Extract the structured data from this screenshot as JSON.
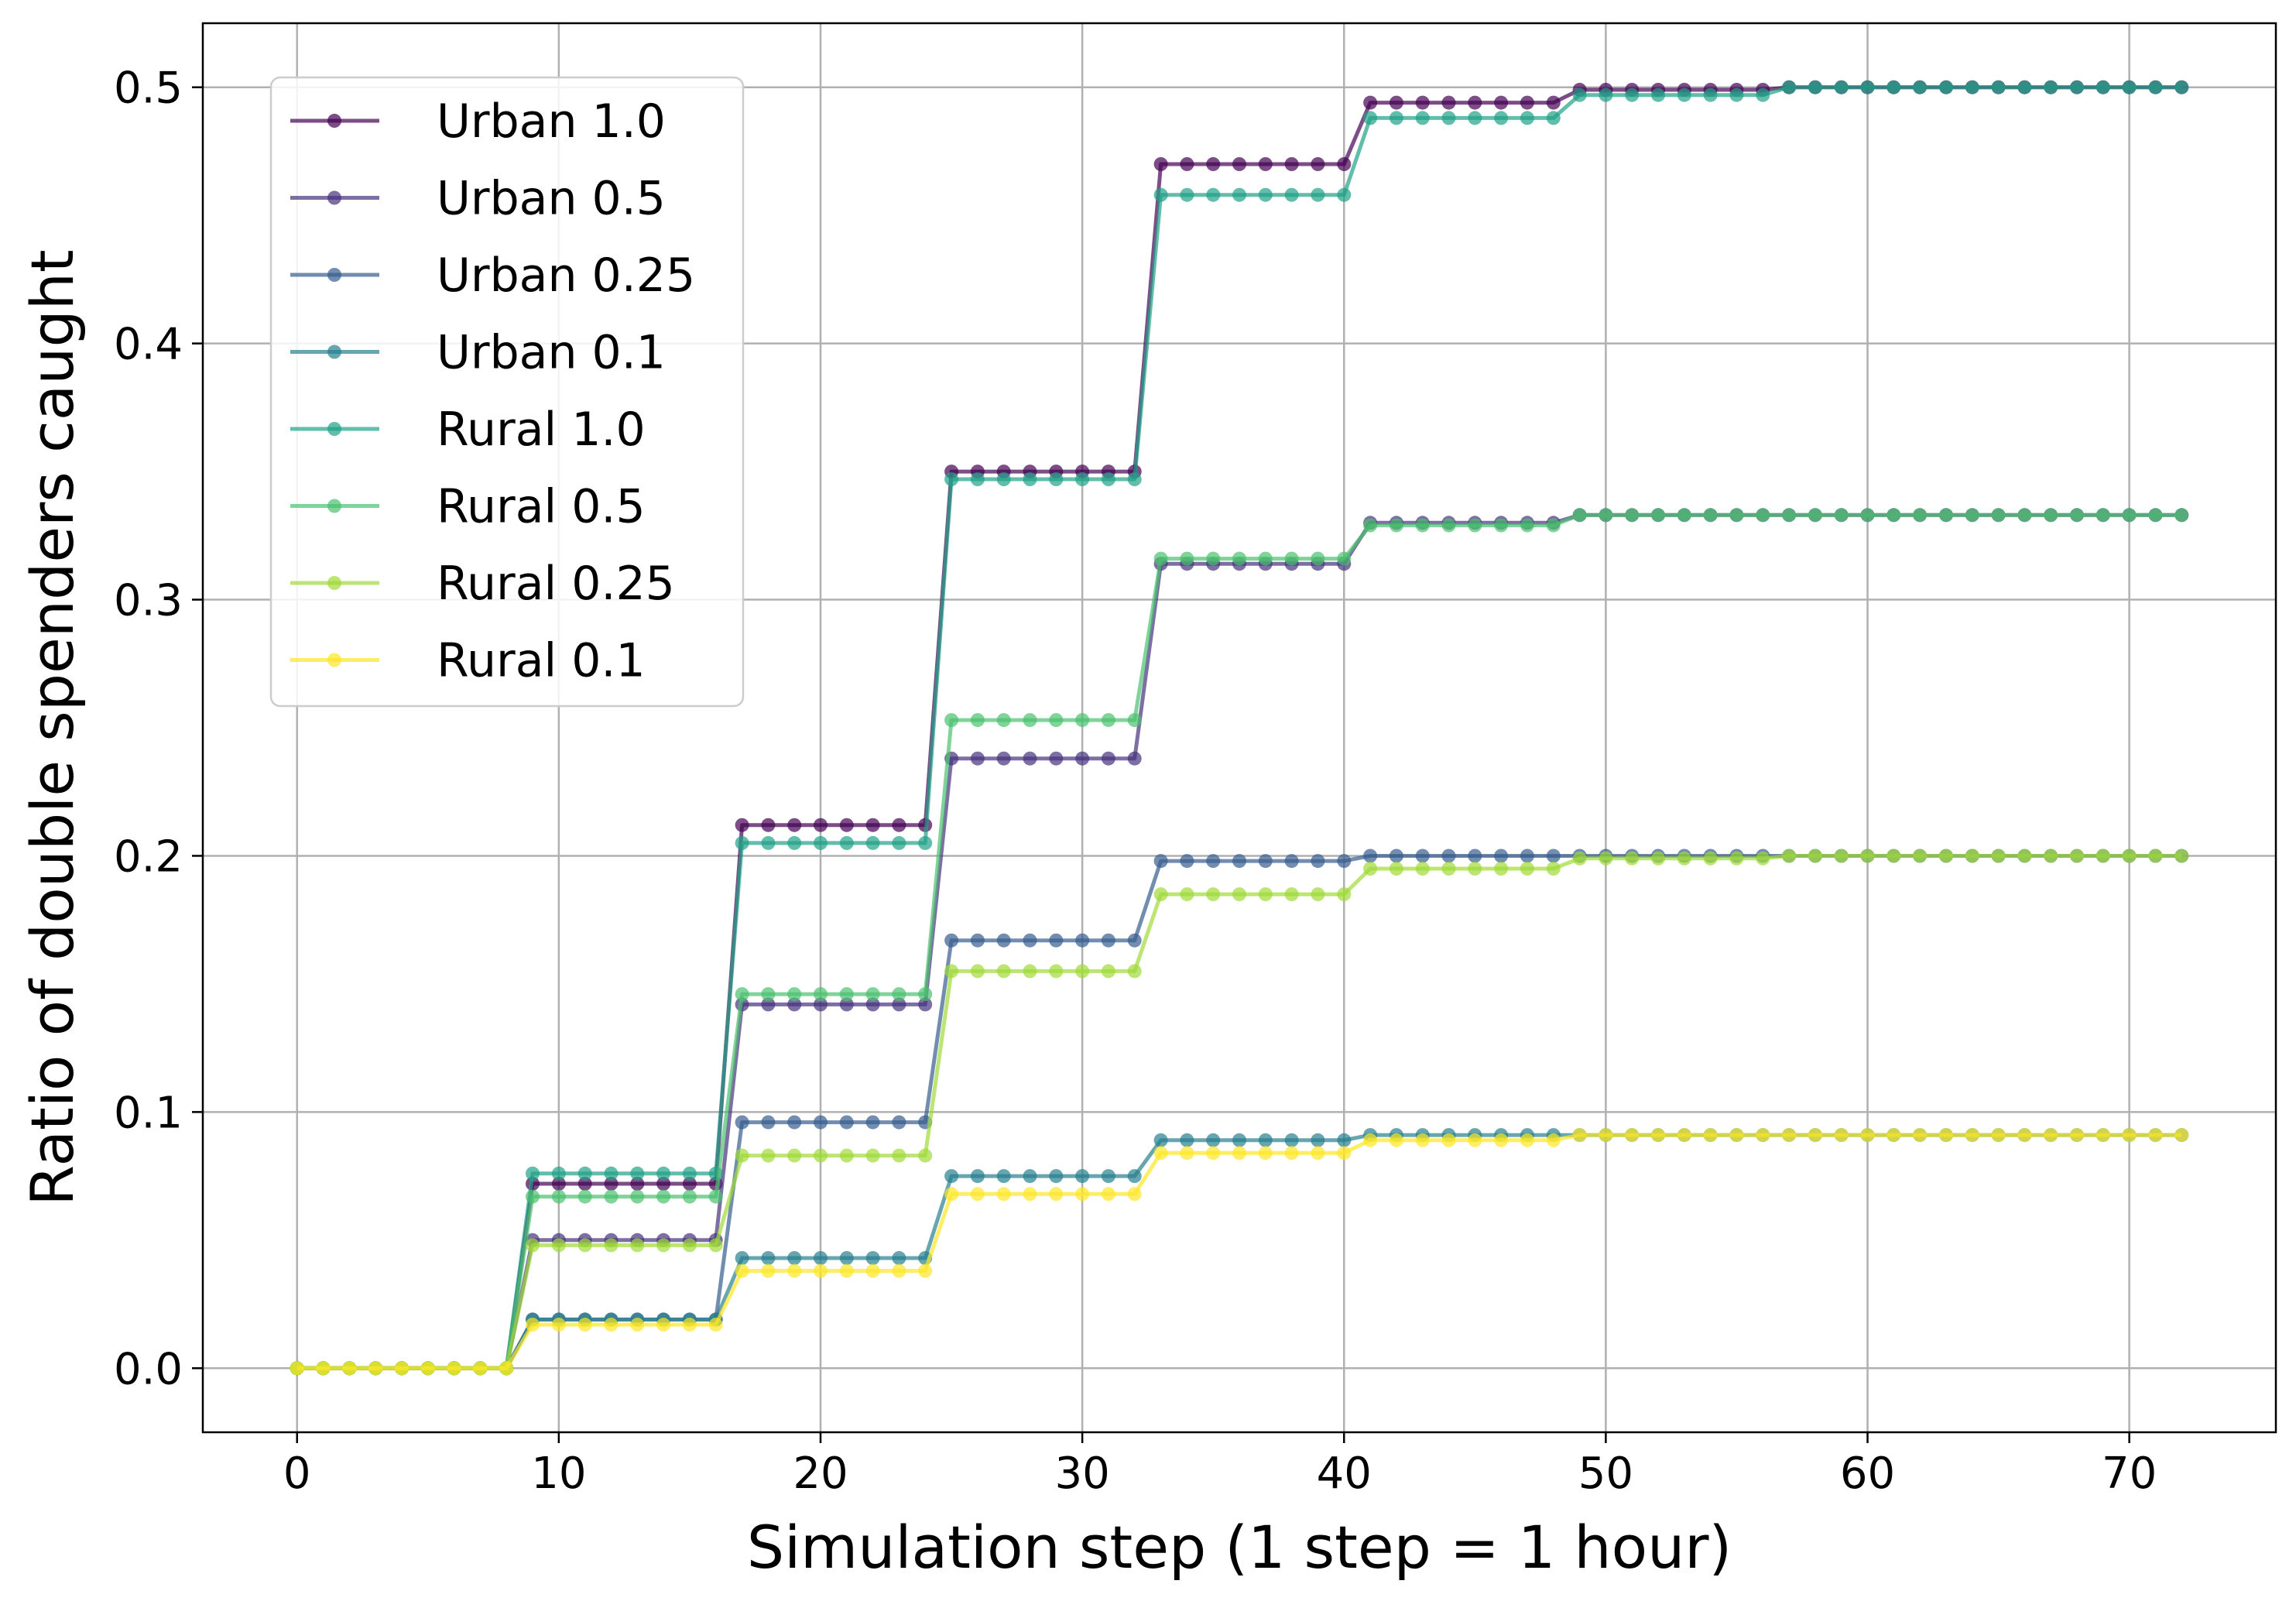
{
  "chart_data": {
    "type": "line",
    "title": "",
    "xlabel": "Simulation step (1 step = 1 hour)",
    "ylabel": "Ratio of double spenders caught",
    "xlim": [
      -3.6,
      75.6
    ],
    "ylim": [
      -0.025,
      0.525
    ],
    "xticks": [
      "0",
      "10",
      "20",
      "30",
      "40",
      "50",
      "60",
      "70"
    ],
    "yticks": [
      "0.0",
      "0.1",
      "0.2",
      "0.3",
      "0.4",
      "0.5"
    ],
    "grid": true,
    "legend_position": "upper-left",
    "x": {
      "start": 0,
      "end": 72,
      "step": 1
    },
    "series_format": "piecewise-constant: each [start_step, value] holds until the next start step",
    "series": [
      {
        "name": "Urban 1.0",
        "color": "#440154",
        "steps": [
          [
            0,
            0.0
          ],
          [
            9,
            0.072
          ],
          [
            17,
            0.212
          ],
          [
            25,
            0.35
          ],
          [
            33,
            0.47
          ],
          [
            41,
            0.494
          ],
          [
            49,
            0.499
          ],
          [
            57,
            0.5
          ]
        ]
      },
      {
        "name": "Urban 0.5",
        "color": "#46327e",
        "steps": [
          [
            0,
            0.0
          ],
          [
            9,
            0.05
          ],
          [
            17,
            0.142
          ],
          [
            25,
            0.238
          ],
          [
            33,
            0.314
          ],
          [
            41,
            0.33
          ],
          [
            49,
            0.333
          ]
        ]
      },
      {
        "name": "Urban 0.25",
        "color": "#365c8d",
        "steps": [
          [
            0,
            0.0
          ],
          [
            9,
            0.019
          ],
          [
            17,
            0.096
          ],
          [
            25,
            0.167
          ],
          [
            33,
            0.198
          ],
          [
            41,
            0.2
          ]
        ]
      },
      {
        "name": "Urban 0.1",
        "color": "#277f8e",
        "steps": [
          [
            0,
            0.0
          ],
          [
            9,
            0.019
          ],
          [
            17,
            0.043
          ],
          [
            25,
            0.075
          ],
          [
            33,
            0.089
          ],
          [
            41,
            0.091
          ]
        ]
      },
      {
        "name": "Rural 1.0",
        "color": "#1fa187",
        "steps": [
          [
            0,
            0.0
          ],
          [
            9,
            0.076
          ],
          [
            17,
            0.205
          ],
          [
            25,
            0.347
          ],
          [
            33,
            0.458
          ],
          [
            41,
            0.488
          ],
          [
            49,
            0.497
          ],
          [
            57,
            0.5
          ]
        ]
      },
      {
        "name": "Rural 0.5",
        "color": "#4ac16d",
        "steps": [
          [
            0,
            0.0
          ],
          [
            9,
            0.067
          ],
          [
            17,
            0.146
          ],
          [
            25,
            0.253
          ],
          [
            33,
            0.316
          ],
          [
            41,
            0.329
          ],
          [
            49,
            0.333
          ]
        ]
      },
      {
        "name": "Rural 0.25",
        "color": "#a0da39",
        "steps": [
          [
            0,
            0.0
          ],
          [
            9,
            0.048
          ],
          [
            17,
            0.083
          ],
          [
            25,
            0.155
          ],
          [
            33,
            0.185
          ],
          [
            41,
            0.195
          ],
          [
            49,
            0.199
          ],
          [
            57,
            0.2
          ]
        ]
      },
      {
        "name": "Rural 0.1",
        "color": "#fde725",
        "steps": [
          [
            0,
            0.0
          ],
          [
            9,
            0.017
          ],
          [
            17,
            0.038
          ],
          [
            25,
            0.068
          ],
          [
            33,
            0.084
          ],
          [
            41,
            0.089
          ],
          [
            49,
            0.091
          ]
        ]
      }
    ]
  }
}
